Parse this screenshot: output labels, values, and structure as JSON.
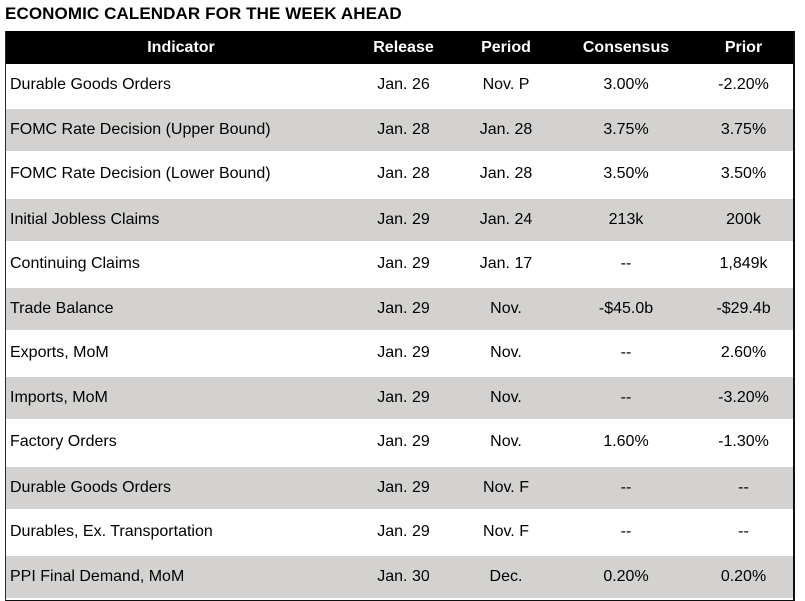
{
  "title": "ECONOMIC CALENDAR FOR THE WEEK AHEAD",
  "colors": {
    "header_bg": "#000000",
    "header_text": "#ffffff",
    "row_bg": "#ffffff",
    "row_alt_bg": "#d3d2d0",
    "text": "#000000",
    "table_border": "#111111"
  },
  "table": {
    "columns": [
      "Indicator",
      "Release",
      "Period",
      "Consensus",
      "Prior"
    ],
    "rows": [
      {
        "indicator": "Durable Goods Orders",
        "release": "Jan. 26",
        "period": "Nov. P",
        "consensus": "3.00%",
        "prior": "-2.20%"
      },
      {
        "indicator": "FOMC Rate Decision (Upper Bound)",
        "release": "Jan. 28",
        "period": "Jan. 28",
        "consensus": "3.75%",
        "prior": "3.75%"
      },
      {
        "indicator": "FOMC Rate Decision (Lower Bound)",
        "release": "Jan. 28",
        "period": "Jan. 28",
        "consensus": "3.50%",
        "prior": "3.50%"
      },
      {
        "indicator": "Initial Jobless Claims",
        "release": "Jan. 29",
        "period": "Jan. 24",
        "consensus": "213k",
        "prior": "200k"
      },
      {
        "indicator": "Continuing Claims",
        "release": "Jan. 29",
        "period": "Jan. 17",
        "consensus": "--",
        "prior": "1,849k"
      },
      {
        "indicator": "Trade Balance",
        "release": "Jan. 29",
        "period": "Nov.",
        "consensus": "-$45.0b",
        "prior": "-$29.4b"
      },
      {
        "indicator": "Exports, MoM",
        "release": "Jan. 29",
        "period": "Nov.",
        "consensus": "--",
        "prior": "2.60%"
      },
      {
        "indicator": "Imports, MoM",
        "release": "Jan. 29",
        "period": "Nov.",
        "consensus": "--",
        "prior": "-3.20%"
      },
      {
        "indicator": "Factory Orders",
        "release": "Jan. 29",
        "period": "Nov.",
        "consensus": "1.60%",
        "prior": "-1.30%"
      },
      {
        "indicator": "Durable Goods Orders",
        "release": "Jan. 29",
        "period": "Nov. F",
        "consensus": "--",
        "prior": "--"
      },
      {
        "indicator": "Durables, Ex. Transportation",
        "release": "Jan. 29",
        "period": "Nov. F",
        "consensus": "--",
        "prior": "--"
      },
      {
        "indicator": "PPI Final Demand, MoM",
        "release": "Jan. 30",
        "period": "Dec.",
        "consensus": "0.20%",
        "prior": "0.20%"
      }
    ]
  }
}
